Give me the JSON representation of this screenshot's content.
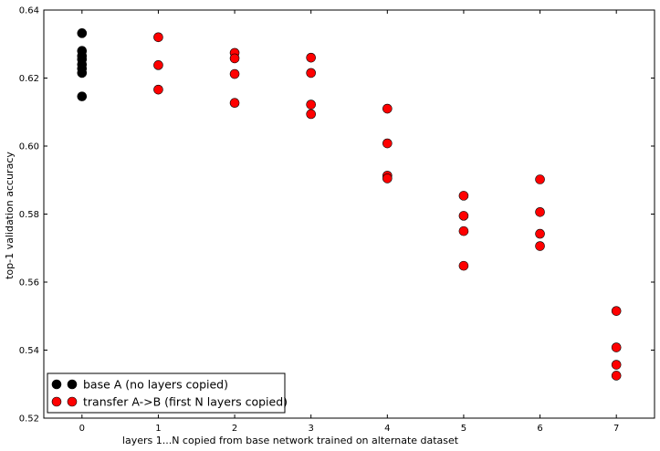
{
  "chart_data": {
    "type": "scatter",
    "title": "",
    "xlabel": "layers 1...N copied from base network trained on alternate dataset",
    "ylabel": "top-1 validation accuracy",
    "xlim": [
      -0.5,
      7.5
    ],
    "ylim": [
      0.52,
      0.64
    ],
    "xticks": [
      "0",
      "1",
      "2",
      "3",
      "4",
      "5",
      "6",
      "7"
    ],
    "yticks": [
      "0.52",
      "0.54",
      "0.56",
      "0.58",
      "0.60",
      "0.62",
      "0.64"
    ],
    "legend_position": "lower-left",
    "series": [
      {
        "name": "base A (no layers copied)",
        "color": "#000000",
        "points": [
          {
            "x": 0,
            "y": 0.6332
          },
          {
            "x": 0,
            "y": 0.628
          },
          {
            "x": 0,
            "y": 0.6265
          },
          {
            "x": 0,
            "y": 0.6255
          },
          {
            "x": 0,
            "y": 0.624
          },
          {
            "x": 0,
            "y": 0.6228
          },
          {
            "x": 0,
            "y": 0.6215
          },
          {
            "x": 0,
            "y": 0.6146
          }
        ]
      },
      {
        "name": "transfer A->B (first N layers copied)",
        "color": "#ff0000",
        "points": [
          {
            "x": 1,
            "y": 0.632
          },
          {
            "x": 1,
            "y": 0.6238
          },
          {
            "x": 1,
            "y": 0.6166
          },
          {
            "x": 2,
            "y": 0.6274
          },
          {
            "x": 2,
            "y": 0.6258
          },
          {
            "x": 2,
            "y": 0.6212
          },
          {
            "x": 2,
            "y": 0.6127
          },
          {
            "x": 3,
            "y": 0.626
          },
          {
            "x": 3,
            "y": 0.6215
          },
          {
            "x": 3,
            "y": 0.6122
          },
          {
            "x": 3,
            "y": 0.6094
          },
          {
            "x": 4,
            "y": 0.611
          },
          {
            "x": 4,
            "y": 0.6008
          },
          {
            "x": 4,
            "y": 0.5913
          },
          {
            "x": 4,
            "y": 0.5905
          },
          {
            "x": 5,
            "y": 0.5854
          },
          {
            "x": 5,
            "y": 0.5795
          },
          {
            "x": 5,
            "y": 0.575
          },
          {
            "x": 5,
            "y": 0.5648
          },
          {
            "x": 6,
            "y": 0.5902
          },
          {
            "x": 6,
            "y": 0.5806
          },
          {
            "x": 6,
            "y": 0.5742
          },
          {
            "x": 6,
            "y": 0.5706
          },
          {
            "x": 7,
            "y": 0.5515
          },
          {
            "x": 7,
            "y": 0.5408
          },
          {
            "x": 7,
            "y": 0.5357
          },
          {
            "x": 7,
            "y": 0.5325
          }
        ]
      }
    ]
  }
}
